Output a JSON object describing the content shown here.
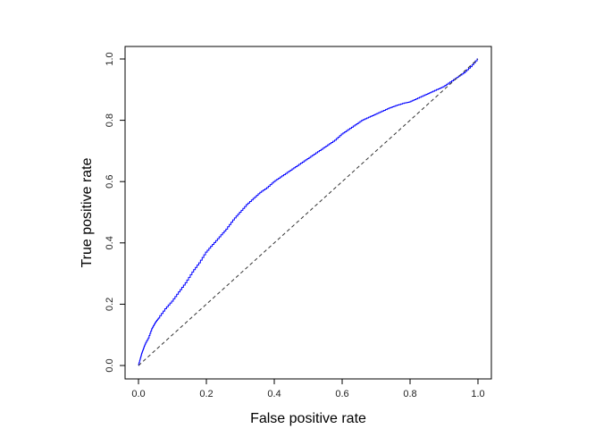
{
  "chart_data": {
    "type": "line",
    "title": "",
    "xlabel": "False positive rate",
    "ylabel": "True positive rate",
    "xlim": [
      0,
      1
    ],
    "ylim": [
      0,
      1
    ],
    "x_ticks": [
      0.0,
      0.2,
      0.4,
      0.6,
      0.8,
      1.0
    ],
    "y_ticks": [
      0.0,
      0.2,
      0.4,
      0.6,
      0.8,
      1.0
    ],
    "x_tick_labels": [
      "0.0",
      "0.2",
      "0.4",
      "0.6",
      "0.8",
      "1.0"
    ],
    "y_tick_labels": [
      "0.0",
      "0.2",
      "0.4",
      "0.6",
      "0.8",
      "1.0"
    ],
    "grid": false,
    "legend": "none",
    "series": [
      {
        "color": "#0000ff",
        "style": "solid",
        "x": [
          0.0,
          0.005,
          0.01,
          0.015,
          0.02,
          0.03,
          0.04,
          0.05,
          0.06,
          0.08,
          0.1,
          0.12,
          0.14,
          0.16,
          0.18,
          0.2,
          0.22,
          0.24,
          0.26,
          0.28,
          0.3,
          0.32,
          0.34,
          0.36,
          0.38,
          0.4,
          0.42,
          0.44,
          0.46,
          0.48,
          0.5,
          0.52,
          0.54,
          0.56,
          0.58,
          0.6,
          0.62,
          0.64,
          0.66,
          0.68,
          0.7,
          0.72,
          0.74,
          0.76,
          0.78,
          0.8,
          0.82,
          0.84,
          0.86,
          0.88,
          0.9,
          0.92,
          0.94,
          0.96,
          0.98,
          1.0
        ],
        "y": [
          0.0,
          0.02,
          0.04,
          0.055,
          0.07,
          0.09,
          0.12,
          0.14,
          0.155,
          0.185,
          0.21,
          0.24,
          0.27,
          0.305,
          0.335,
          0.37,
          0.395,
          0.42,
          0.445,
          0.475,
          0.5,
          0.525,
          0.545,
          0.565,
          0.58,
          0.6,
          0.615,
          0.63,
          0.645,
          0.66,
          0.675,
          0.69,
          0.705,
          0.72,
          0.735,
          0.755,
          0.77,
          0.785,
          0.8,
          0.81,
          0.82,
          0.83,
          0.84,
          0.848,
          0.855,
          0.86,
          0.87,
          0.88,
          0.89,
          0.9,
          0.91,
          0.925,
          0.94,
          0.955,
          0.975,
          1.0
        ]
      },
      {
        "color": "#333333",
        "style": "dashed",
        "x": [
          0,
          1
        ],
        "y": [
          0,
          1
        ]
      }
    ]
  }
}
